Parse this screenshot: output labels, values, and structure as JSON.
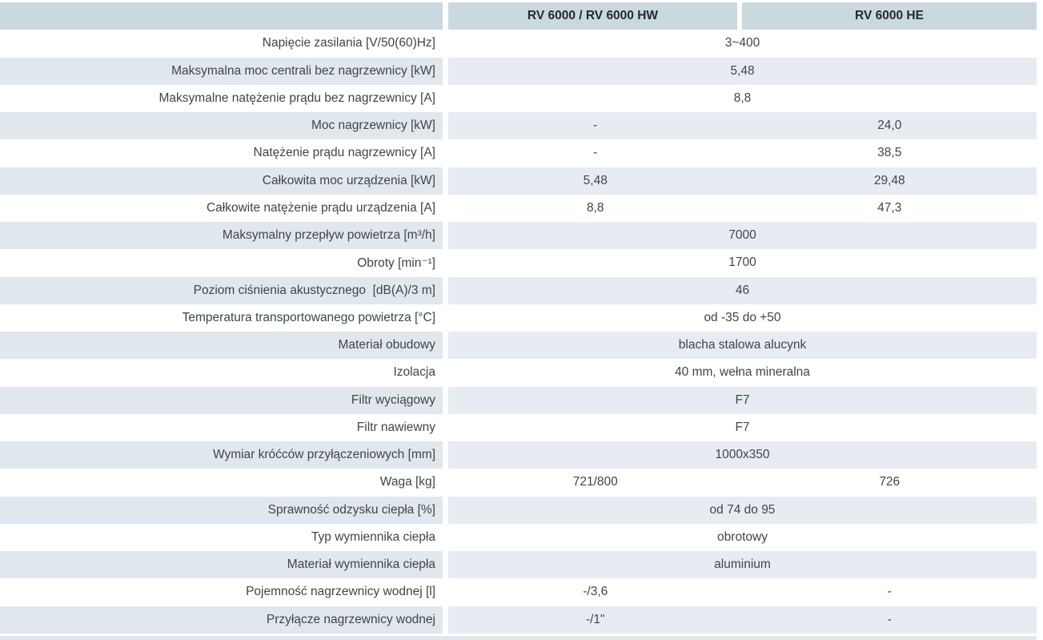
{
  "table": {
    "columns": [
      "",
      "RV 6000 / RV 6000 HW",
      "RV 6000 HE"
    ],
    "rows": [
      {
        "label": "Napięcie zasilania [V/50(60)Hz]",
        "values": [
          "3~400"
        ]
      },
      {
        "label": "Maksymalna moc centrali bez nagrzewnicy [kW]",
        "values": [
          "5,48"
        ]
      },
      {
        "label": "Maksymalne natężenie prądu bez nagrzewnicy [A]",
        "values": [
          "8,8"
        ]
      },
      {
        "label": "Moc nagrzewnicy [kW]",
        "values": [
          "-",
          "24,0"
        ]
      },
      {
        "label": "Natężenie prądu nagrzewnicy [A]",
        "values": [
          "-",
          "38,5"
        ]
      },
      {
        "label": "Całkowita moc urządzenia [kW]",
        "values": [
          "5,48",
          "29,48"
        ]
      },
      {
        "label": "Całkowite natężenie prądu urządzenia [A]",
        "values": [
          "8,8",
          "47,3"
        ]
      },
      {
        "label": "Maksymalny przepływ powietrza [m³/h]",
        "values": [
          "7000"
        ]
      },
      {
        "label": "Obroty [min⁻¹]",
        "values": [
          "1700"
        ]
      },
      {
        "label": "Poziom ciśnienia akustycznego  [dB(A)/3 m]",
        "values": [
          "46"
        ]
      },
      {
        "label": "Temperatura transportowanego powietrza [°C]",
        "values": [
          "od -35 do +50"
        ]
      },
      {
        "label": "Materiał obudowy",
        "values": [
          "blacha stalowa alucynk"
        ]
      },
      {
        "label": "Izolacja",
        "values": [
          "40 mm, wełna mineralna"
        ]
      },
      {
        "label": "Filtr wyciągowy",
        "values": [
          "F7"
        ]
      },
      {
        "label": "Filtr nawiewny",
        "values": [
          "F7"
        ]
      },
      {
        "label": "Wymiar króćców przyłączeniowych [mm]",
        "values": [
          "1000x350"
        ]
      },
      {
        "label": "Waga [kg]",
        "values": [
          "721/800",
          "726"
        ]
      },
      {
        "label": "Sprawność odzysku ciepła [%]",
        "values": [
          "od 74 do 95"
        ]
      },
      {
        "label": "Typ wymiennika ciepła",
        "values": [
          "obrotowy"
        ]
      },
      {
        "label": "Materiał wymiennika ciepła",
        "values": [
          "aluminium"
        ]
      },
      {
        "label": "Pojemność nagrzewnicy wodnej [l]",
        "values": [
          "-/3,6",
          "-"
        ]
      },
      {
        "label": "Przyłącze nagrzewnicy wodnej",
        "values": [
          "-/1\"",
          "-"
        ]
      }
    ]
  },
  "colors": {
    "header_bg": "#cbd8df",
    "header_text": "#26292c",
    "text": "#404547",
    "alt_label_bg": "#e0e8ee",
    "alt_value_bg": "#e6ecf1",
    "row_bg": "#ffffff",
    "bottom_band_bg": "#dfe6ec"
  }
}
